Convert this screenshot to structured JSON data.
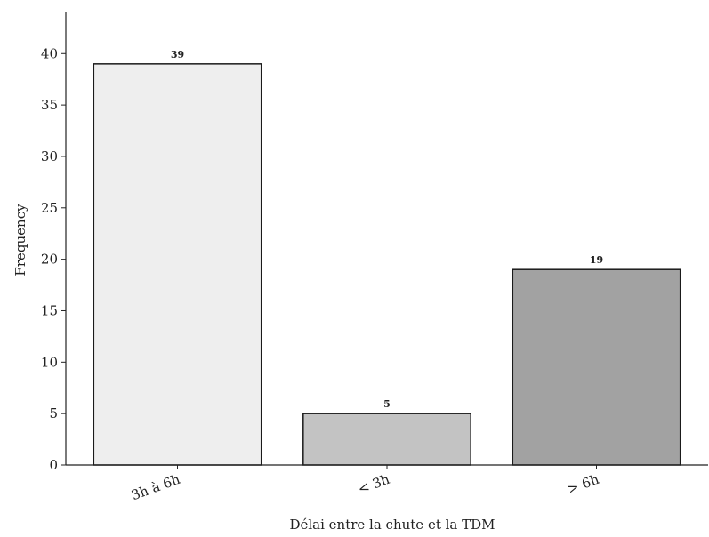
{
  "chart_data": {
    "type": "bar",
    "title": "",
    "xlabel": "Délai entre la chute et la TDM",
    "ylabel": "Frequency",
    "categories": [
      "3h à 6h",
      "< 3h",
      "> 6h"
    ],
    "values": [
      39,
      5,
      19
    ],
    "data_labels": [
      "39",
      "5",
      "19"
    ],
    "bar_colors": [
      "#eeeeee",
      "#c3c3c3",
      "#a2a2a2"
    ],
    "edge_color": "#1a1a1a",
    "ylim": [
      0,
      44
    ],
    "yticks": [
      0,
      5,
      10,
      15,
      20,
      25,
      30,
      35,
      40
    ],
    "grid": false,
    "legend": "none"
  }
}
